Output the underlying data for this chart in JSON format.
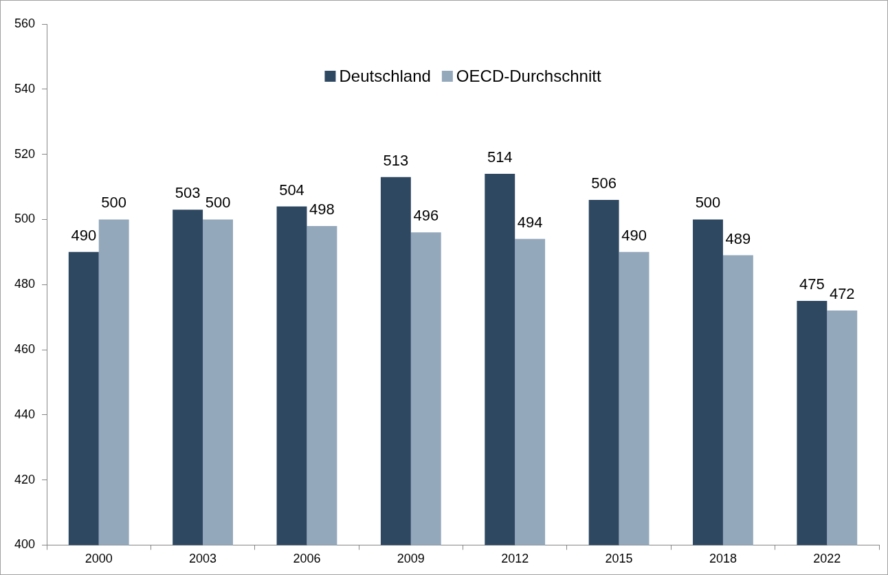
{
  "chart_data": {
    "type": "bar",
    "categories": [
      "2000",
      "2003",
      "2006",
      "2009",
      "2012",
      "2015",
      "2018",
      "2022"
    ],
    "series": [
      {
        "name": "Deutschland",
        "color": "#2e4862",
        "values": [
          490,
          503,
          504,
          513,
          514,
          506,
          500,
          475
        ]
      },
      {
        "name": "OECD-Durchschnitt",
        "color": "#94a8bc",
        "values": [
          500,
          500,
          498,
          496,
          494,
          490,
          489,
          472
        ]
      }
    ],
    "ylim": [
      400,
      560
    ],
    "yticks": [
      400,
      420,
      440,
      460,
      480,
      500,
      520,
      540,
      560
    ],
    "grid": false,
    "legend": "top",
    "data_labels": true
  }
}
